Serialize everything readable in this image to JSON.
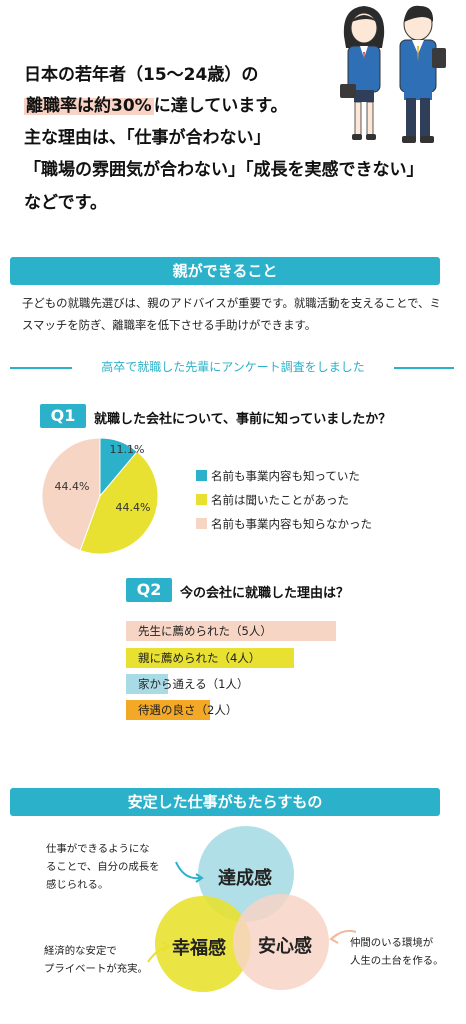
{
  "hero": {
    "line1": "日本の若年者（15〜24歳）の",
    "line2_hl": "離職率は約30%",
    "line2_rest": "に達しています。",
    "line3": "主な理由は、「仕事が合わない」",
    "line4": "「職場の雰囲気が合わない」「成長を実感できない」",
    "line5": "などです。"
  },
  "section1": {
    "title": "親ができること",
    "para": "子どもの就職先選びは、親のアドバイスが重要です。就職活動を支えることで、ミスマッチを防ぎ、離職率を低下させる手助けができます。"
  },
  "survey": {
    "title": "高卒で就職した先輩にアンケート調査をしました"
  },
  "q1": {
    "tag": "Q1",
    "question": "就職した会社について、事前に知っていましたか？",
    "chart_data": {
      "type": "pie",
      "categories": [
        "名前も事業内容も知っていた",
        "名前は聞いたことがあった",
        "名前も事業内容も知らなかった"
      ],
      "values": [
        11.1,
        44.4,
        44.4
      ],
      "labels": [
        "11.1%",
        "44.4%",
        "44.4%"
      ],
      "colors": [
        "#2bb1c9",
        "#e8e131",
        "#f7d5c5"
      ],
      "legend": "right"
    }
  },
  "q2": {
    "tag": "Q2",
    "question": "今の会社に就職した理由は？",
    "chart_data": {
      "type": "bar",
      "categories": [
        "先生に薦められた",
        "親に薦められた",
        "家から通える",
        "待遇の良さ"
      ],
      "values": [
        5,
        4,
        1,
        2
      ],
      "labels": [
        "先生に薦められた（5人）",
        "親に薦められた（4人）",
        "家から通える（1人）",
        "待遇の良さ（2人）"
      ],
      "colors": [
        "#f7d5c5",
        "#e8e131",
        "#a9dbe6",
        "#f3a826"
      ],
      "orientation": "horizontal"
    }
  },
  "section2": {
    "title": "安定した仕事がもたらすもの",
    "circles": [
      "達成感",
      "幸福感",
      "安心感"
    ],
    "notes": {
      "top": [
        "仕事ができるようにな",
        "ることで、自分の成長を",
        "感じられる。"
      ],
      "left": [
        "経済的な安定で",
        "プライベートが充実。"
      ],
      "right": [
        "仲間のいる環境が",
        "人生の土台を作る。"
      ]
    },
    "colors": {
      "top": "#a9dbe6",
      "left": "#e8e131",
      "right": "#f7d5c5",
      "arrow_top": "#2bb1c9",
      "arrow_left": "#e8e131",
      "arrow_right": "#f2b89e"
    }
  }
}
